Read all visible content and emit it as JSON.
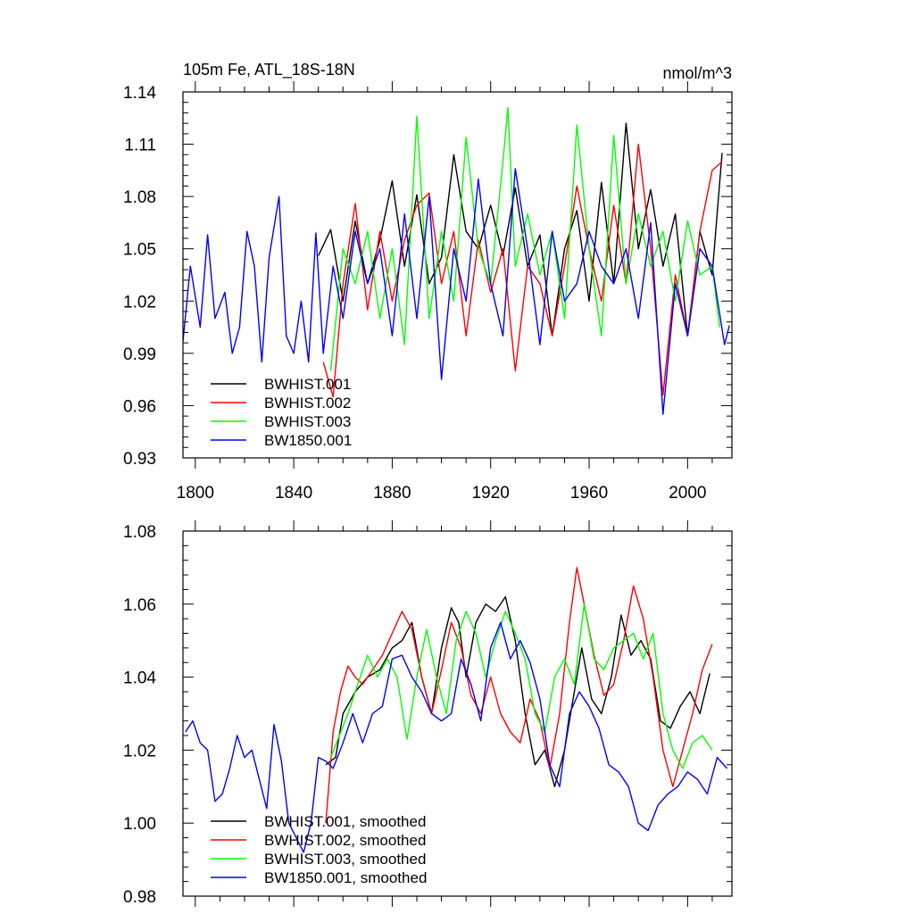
{
  "chart_data": [
    {
      "type": "line",
      "title_left": "105m Fe, ATL_18S-18N",
      "title_right": "nmol/m^3",
      "xlabel": "",
      "ylabel": "",
      "xlim": [
        1795,
        2018
      ],
      "ylim": [
        0.93,
        1.14
      ],
      "x_ticks": [
        1800,
        1840,
        1880,
        1920,
        1960,
        2000
      ],
      "x_tick_labels": [
        "1800",
        "1840",
        "1880",
        "1920",
        "1960",
        "2000"
      ],
      "y_ticks": [
        0.93,
        0.96,
        0.99,
        1.02,
        1.05,
        1.08,
        1.11,
        1.14
      ],
      "y_tick_labels": [
        "0.93",
        "0.96",
        "0.99",
        "1.02",
        "1.05",
        "1.08",
        "1.11",
        "1.14"
      ],
      "legend_position": "bottom-left",
      "series": [
        {
          "name": "BWHIST.001",
          "color": "#000000",
          "x": [
            1850,
            1855,
            1860,
            1865,
            1870,
            1875,
            1880,
            1885,
            1890,
            1895,
            1900,
            1905,
            1910,
            1915,
            1920,
            1925,
            1930,
            1935,
            1940,
            1945,
            1950,
            1955,
            1960,
            1965,
            1970,
            1975,
            1980,
            1985,
            1990,
            1995,
            2000,
            2005,
            2010,
            2014
          ],
          "y": [
            1.046,
            1.061,
            1.02,
            1.066,
            1.03,
            1.055,
            1.089,
            1.04,
            1.081,
            1.03,
            1.045,
            1.104,
            1.06,
            1.05,
            1.075,
            1.046,
            1.085,
            1.04,
            1.058,
            1.0,
            1.05,
            1.072,
            1.02,
            1.088,
            1.03,
            1.122,
            1.05,
            1.084,
            1.04,
            1.07,
            1.0,
            1.06,
            1.035,
            1.105
          ]
        },
        {
          "name": "BWHIST.002",
          "color": "#ff0000",
          "x": [
            1852,
            1856,
            1860,
            1865,
            1870,
            1875,
            1880,
            1885,
            1890,
            1895,
            1900,
            1905,
            1910,
            1915,
            1920,
            1925,
            1930,
            1935,
            1940,
            1945,
            1950,
            1955,
            1960,
            1965,
            1970,
            1975,
            1980,
            1985,
            1990,
            1995,
            2000,
            2005,
            2010,
            2014
          ],
          "y": [
            0.985,
            0.965,
            1.03,
            1.076,
            1.015,
            1.06,
            1.02,
            1.055,
            1.075,
            1.082,
            1.03,
            1.06,
            1.0,
            1.055,
            1.025,
            1.05,
            0.98,
            1.04,
            1.03,
            1.0,
            1.04,
            1.086,
            1.05,
            1.02,
            1.075,
            1.03,
            1.11,
            1.05,
            0.966,
            1.035,
            1.0,
            1.06,
            1.095,
            1.1
          ]
        },
        {
          "name": "BWHIST.003",
          "color": "#00ff00",
          "x": [
            1855,
            1860,
            1865,
            1870,
            1875,
            1880,
            1885,
            1890,
            1895,
            1900,
            1905,
            1910,
            1915,
            1920,
            1925,
            1927,
            1930,
            1935,
            1940,
            1945,
            1950,
            1955,
            1960,
            1965,
            1970,
            1975,
            1980,
            1985,
            1990,
            1995,
            2000,
            2005,
            2010,
            2013
          ],
          "y": [
            0.98,
            1.05,
            1.03,
            1.06,
            1.01,
            1.05,
            0.995,
            1.126,
            1.01,
            1.06,
            1.02,
            1.114,
            1.05,
            1.03,
            1.1,
            1.131,
            1.04,
            1.07,
            1.035,
            1.06,
            1.01,
            1.121,
            1.05,
            1.0,
            1.115,
            1.03,
            1.07,
            1.04,
            1.06,
            1.02,
            1.066,
            1.035,
            1.04,
            1.005
          ]
        },
        {
          "name": "BW1850.001",
          "color": "#0000ff",
          "x": [
            1795,
            1798,
            1802,
            1805,
            1808,
            1812,
            1815,
            1818,
            1821,
            1824,
            1827,
            1830,
            1834,
            1837,
            1840,
            1843,
            1846,
            1849,
            1852,
            1856,
            1860,
            1865,
            1870,
            1875,
            1880,
            1885,
            1890,
            1895,
            1900,
            1905,
            1910,
            1915,
            1920,
            1925,
            1930,
            1935,
            1940,
            1945,
            1950,
            1955,
            1960,
            1965,
            1970,
            1975,
            1980,
            1985,
            1990,
            1995,
            2000,
            2005,
            2010,
            2015,
            2017
          ],
          "y": [
            0.997,
            1.04,
            1.005,
            1.058,
            1.01,
            1.025,
            0.99,
            1.005,
            1.06,
            1.04,
            0.985,
            1.045,
            1.08,
            1.0,
            0.99,
            1.02,
            0.985,
            1.059,
            0.99,
            1.04,
            1.01,
            1.06,
            1.03,
            1.05,
            1.0,
            1.07,
            1.01,
            1.08,
            0.975,
            1.05,
            1.02,
            1.09,
            1.03,
            1.0,
            1.096,
            1.05,
            0.995,
            1.06,
            1.02,
            1.03,
            1.06,
            1.04,
            1.03,
            1.05,
            1.01,
            1.065,
            0.955,
            1.03,
            1.0,
            1.05,
            1.04,
            0.995,
            1.006
          ]
        }
      ]
    },
    {
      "type": "line",
      "xlabel": "",
      "ylabel": "",
      "xlim": [
        1795,
        2018
      ],
      "ylim": [
        0.98,
        1.08
      ],
      "x_ticks": [
        1800,
        1840,
        1880,
        1920,
        1960,
        2000
      ],
      "y_ticks": [
        0.98,
        1.0,
        1.02,
        1.04,
        1.06,
        1.08
      ],
      "y_tick_labels": [
        "0.98",
        "1.00",
        "1.02",
        "1.04",
        "1.06",
        "1.08"
      ],
      "legend_position": "bottom-left",
      "series": [
        {
          "name": "BWHIST.001, smoothed",
          "color": "#000000",
          "x": [
            1853,
            1857,
            1860,
            1865,
            1870,
            1875,
            1880,
            1884,
            1888,
            1892,
            1896,
            1900,
            1904,
            1907,
            1910,
            1914,
            1918,
            1922,
            1926,
            1930,
            1934,
            1938,
            1942,
            1946,
            1950,
            1953,
            1957,
            1961,
            1965,
            1969,
            1973,
            1977,
            1981,
            1985,
            1989,
            1993,
            1997,
            2001,
            2005,
            2009
          ],
          "y": [
            1.016,
            1.018,
            1.03,
            1.036,
            1.04,
            1.042,
            1.048,
            1.05,
            1.055,
            1.04,
            1.03,
            1.048,
            1.059,
            1.055,
            1.04,
            1.055,
            1.06,
            1.058,
            1.062,
            1.05,
            1.03,
            1.016,
            1.02,
            1.01,
            1.02,
            1.032,
            1.048,
            1.034,
            1.03,
            1.04,
            1.057,
            1.046,
            1.05,
            1.045,
            1.028,
            1.026,
            1.032,
            1.036,
            1.03,
            1.041
          ]
        },
        {
          "name": "BWHIST.002, smoothed",
          "color": "#ff0000",
          "x": [
            1853,
            1856,
            1859,
            1862,
            1865,
            1868,
            1872,
            1876,
            1880,
            1884,
            1888,
            1892,
            1896,
            1900,
            1904,
            1908,
            1912,
            1916,
            1920,
            1924,
            1928,
            1932,
            1936,
            1940,
            1944,
            1948,
            1952,
            1955,
            1958,
            1962,
            1966,
            1970,
            1974,
            1978,
            1982,
            1986,
            1990,
            1994,
            1998,
            2002,
            2006,
            2010
          ],
          "y": [
            1.0,
            1.025,
            1.036,
            1.043,
            1.04,
            1.038,
            1.042,
            1.046,
            1.052,
            1.058,
            1.053,
            1.04,
            1.03,
            1.042,
            1.055,
            1.048,
            1.035,
            1.03,
            1.04,
            1.03,
            1.025,
            1.022,
            1.034,
            1.028,
            1.015,
            1.03,
            1.055,
            1.07,
            1.06,
            1.046,
            1.035,
            1.038,
            1.05,
            1.065,
            1.056,
            1.04,
            1.02,
            1.01,
            1.02,
            1.03,
            1.042,
            1.049
          ]
        },
        {
          "name": "BWHIST.003, smoothed",
          "color": "#00ff00",
          "x": [
            1855,
            1858,
            1862,
            1866,
            1870,
            1874,
            1878,
            1882,
            1886,
            1890,
            1894,
            1898,
            1902,
            1906,
            1910,
            1914,
            1918,
            1922,
            1926,
            1930,
            1934,
            1938,
            1942,
            1946,
            1950,
            1954,
            1958,
            1962,
            1966,
            1970,
            1974,
            1978,
            1982,
            1986,
            1990,
            1994,
            1998,
            2002,
            2006,
            2010
          ],
          "y": [
            1.018,
            1.023,
            1.03,
            1.038,
            1.046,
            1.04,
            1.045,
            1.04,
            1.023,
            1.04,
            1.053,
            1.04,
            1.03,
            1.05,
            1.058,
            1.052,
            1.04,
            1.05,
            1.058,
            1.052,
            1.045,
            1.03,
            1.025,
            1.04,
            1.045,
            1.038,
            1.06,
            1.045,
            1.042,
            1.048,
            1.05,
            1.052,
            1.045,
            1.052,
            1.03,
            1.02,
            1.015,
            1.022,
            1.024,
            1.02
          ]
        },
        {
          "name": "BW1850.001, smoothed",
          "color": "#0000ff",
          "x": [
            1796,
            1799,
            1802,
            1805,
            1808,
            1811,
            1814,
            1817,
            1820,
            1823,
            1826,
            1829,
            1832,
            1835,
            1838,
            1841,
            1844,
            1847,
            1850,
            1853,
            1856,
            1860,
            1864,
            1868,
            1872,
            1876,
            1880,
            1884,
            1888,
            1892,
            1896,
            1900,
            1904,
            1908,
            1912,
            1916,
            1920,
            1924,
            1928,
            1932,
            1936,
            1940,
            1944,
            1948,
            1952,
            1956,
            1960,
            1964,
            1968,
            1972,
            1976,
            1980,
            1984,
            1988,
            1992,
            1996,
            2000,
            2004,
            2008,
            2012,
            2016
          ],
          "y": [
            1.025,
            1.028,
            1.022,
            1.02,
            1.006,
            1.008,
            1.015,
            1.024,
            1.018,
            1.02,
            1.012,
            1.004,
            1.027,
            1.017,
            1.0,
            0.996,
            0.992,
            1.0,
            1.018,
            1.017,
            1.015,
            1.022,
            1.03,
            1.022,
            1.03,
            1.032,
            1.045,
            1.046,
            1.04,
            1.036,
            1.03,
            1.028,
            1.03,
            1.045,
            1.038,
            1.028,
            1.048,
            1.055,
            1.045,
            1.05,
            1.044,
            1.034,
            1.016,
            1.01,
            1.03,
            1.036,
            1.032,
            1.026,
            1.016,
            1.014,
            1.01,
            1.0,
            0.998,
            1.005,
            1.008,
            1.01,
            1.014,
            1.012,
            1.008,
            1.018,
            1.015
          ]
        }
      ]
    }
  ]
}
